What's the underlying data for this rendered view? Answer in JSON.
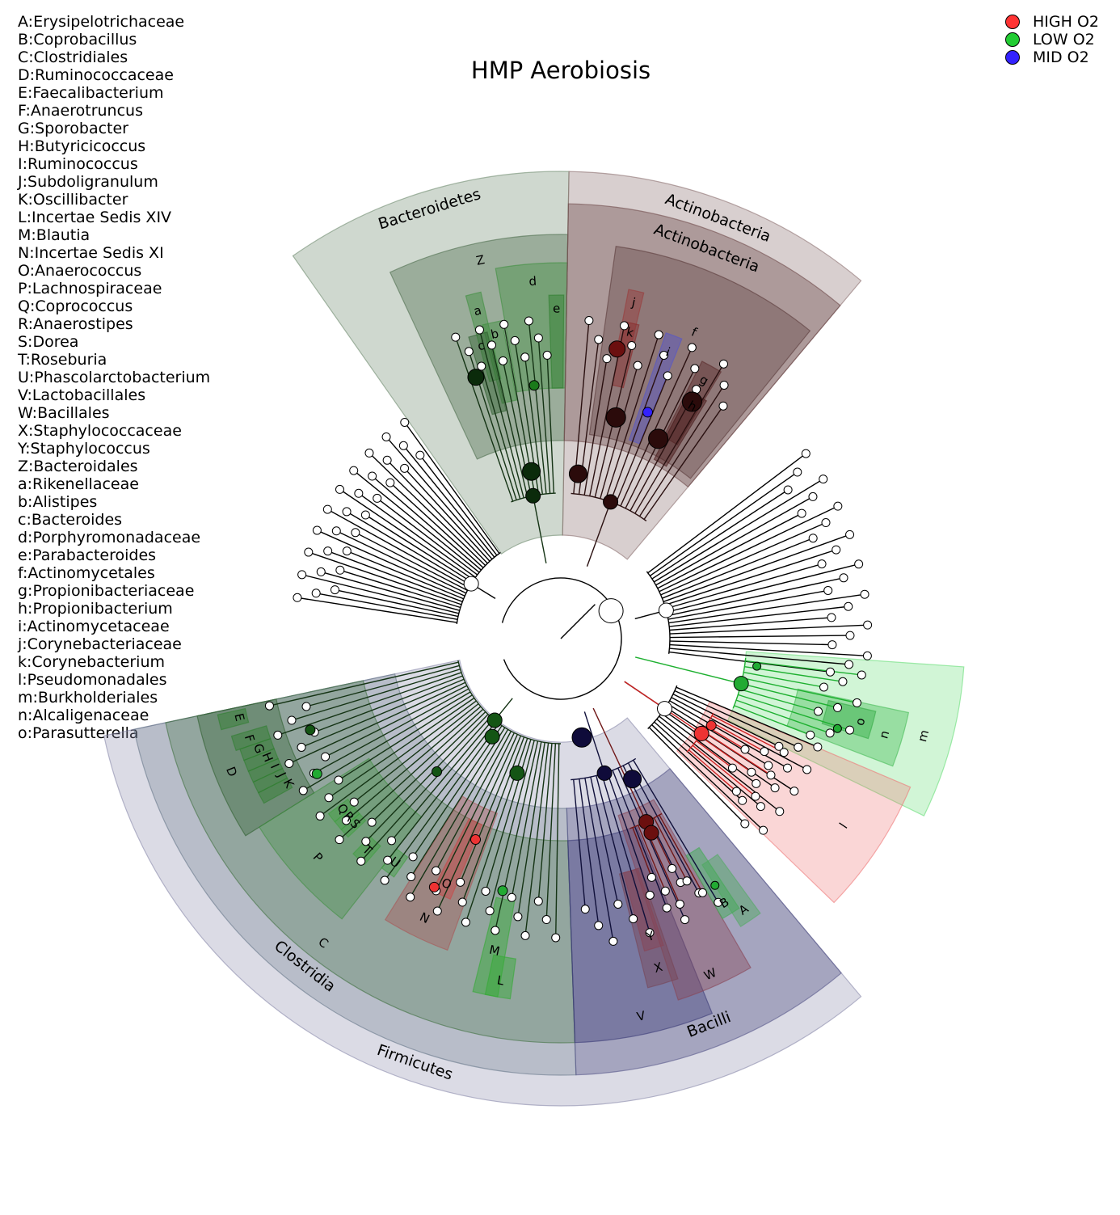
{
  "title": "HMP Aerobiosis",
  "legend": [
    {
      "label": "HIGH O2",
      "color": "#ff3333"
    },
    {
      "label": "LOW O2",
      "color": "#22cc33"
    },
    {
      "label": "MID O2",
      "color": "#3322ff"
    }
  ],
  "key": [
    "A:Erysipelotrichaceae",
    "B:Coprobacillus",
    "C:Clostridiales",
    "D:Ruminococcaceae",
    "E:Faecalibacterium",
    "F:Anaerotruncus",
    "G:Sporobacter",
    "H:Butyricicoccus",
    "I:Ruminococcus",
    "J:Subdoligranulum",
    "K:Oscillibacter",
    "L:Incertae Sedis XIV",
    "M:Blautia",
    "N:Incertae Sedis XI",
    "O:Anaerococcus",
    "P:Lachnospiraceae",
    "Q:Coprococcus",
    "R:Anaerostipes",
    "S:Dorea",
    "T:Roseburia",
    "U:Phascolarctobacterium",
    "V:Lactobacillales",
    "W:Bacillales",
    "X:Staphylococcaceae",
    "Y:Staphylococcus",
    "Z:Bacteroidales",
    "a:Rikenellaceae",
    "b:Alistipes",
    "c:Bacteroides",
    "d:Porphyromonadaceae",
    "e:Parabacteroides",
    "f:Actinomycetales",
    "g:Propionibacteriaceae",
    "h:Propionibacterium",
    "i:Actinomycetaceae",
    "j:Corynebacteriaceae",
    "k:Corynebacterium",
    "l:Pseudomonadales",
    "m:Burkholderiales",
    "n:Alcaligenaceae",
    "o:Parasutterella"
  ],
  "wedges": [
    {
      "label": "Bacteroidetes",
      "color": "#6e8a6e",
      "group": "LOW O2"
    },
    {
      "label": "Z",
      "color": "#4e6e4e",
      "group": "LOW O2"
    },
    {
      "label": "a",
      "color": "#3f8f3f",
      "group": "LOW O2"
    },
    {
      "label": "b",
      "color": "#3f8f3f",
      "group": "LOW O2"
    },
    {
      "label": "c",
      "color": "#2f5f2f",
      "group": "LOW O2"
    },
    {
      "label": "d",
      "color": "#3f8f3f",
      "group": "LOW O2"
    },
    {
      "label": "e",
      "color": "#2f7f2f",
      "group": "LOW O2"
    },
    {
      "label": "Actinobacteria",
      "color": "#8a6e6e",
      "group": "HIGH O2"
    },
    {
      "label": "Actinobacteria",
      "color": "#6e4a4a",
      "group": "HIGH O2"
    },
    {
      "label": "f",
      "color": "#5a3a3a",
      "group": "HIGH O2"
    },
    {
      "label": "j",
      "color": "#9a3a3a",
      "group": "HIGH O2"
    },
    {
      "label": "k",
      "color": "#8a2a2a",
      "group": "HIGH O2"
    },
    {
      "label": "i",
      "color": "#5555cc",
      "group": "MID O2"
    },
    {
      "label": "g",
      "color": "#5a2a2a",
      "group": "HIGH O2"
    },
    {
      "label": "h",
      "color": "#4a1a1a",
      "group": "HIGH O2"
    },
    {
      "label": "m",
      "color": "#66dd77",
      "group": "LOW O2"
    },
    {
      "label": "n",
      "color": "#44bb55",
      "group": "LOW O2"
    },
    {
      "label": "o",
      "color": "#33aa44",
      "group": "LOW O2"
    },
    {
      "label": "l",
      "color": "#ee7777",
      "group": "HIGH O2"
    },
    {
      "label": "Firmicutes",
      "color": "#8888aa",
      "group": "MID O2"
    },
    {
      "label": "Clostridia",
      "color": "#667788",
      "group": "LOW O2"
    },
    {
      "label": "C",
      "color": "#3f6f3f",
      "group": "LOW O2"
    },
    {
      "label": "D",
      "color": "#2f5f2f",
      "group": "LOW O2"
    },
    {
      "label": "E",
      "color": "#2f7f2f",
      "group": "LOW O2"
    },
    {
      "label": "F",
      "color": "#2f7f2f",
      "group": "LOW O2"
    },
    {
      "label": "G",
      "color": "#2f7f2f",
      "group": "LOW O2"
    },
    {
      "label": "H",
      "color": "#2f7f2f",
      "group": "LOW O2"
    },
    {
      "label": "I",
      "color": "#2f7f2f",
      "group": "LOW O2"
    },
    {
      "label": "J",
      "color": "#2f7f2f",
      "group": "LOW O2"
    },
    {
      "label": "K",
      "color": "#2f7f2f",
      "group": "LOW O2"
    },
    {
      "label": "P",
      "color": "#3f8f3f",
      "group": "LOW O2"
    },
    {
      "label": "Q",
      "color": "#3f9f3f",
      "group": "LOW O2"
    },
    {
      "label": "R",
      "color": "#3f9f3f",
      "group": "LOW O2"
    },
    {
      "label": "S",
      "color": "#3f9f3f",
      "group": "LOW O2"
    },
    {
      "label": "T",
      "color": "#3f9f3f",
      "group": "LOW O2"
    },
    {
      "label": "U",
      "color": "#3f9f3f",
      "group": "LOW O2"
    },
    {
      "label": "N",
      "color": "#aa5555",
      "group": "HIGH O2"
    },
    {
      "label": "O",
      "color": "#cc4444",
      "group": "HIGH O2"
    },
    {
      "label": "M",
      "color": "#33aa33",
      "group": "LOW O2"
    },
    {
      "label": "L",
      "color": "#33aa33",
      "group": "LOW O2"
    },
    {
      "label": "Bacilli",
      "color": "#555588",
      "group": "MID O2"
    },
    {
      "label": "V",
      "color": "#3a3a77",
      "group": "MID O2"
    },
    {
      "label": "W",
      "color": "#884455",
      "group": "HIGH O2"
    },
    {
      "label": "X",
      "color": "#774455",
      "group": "HIGH O2"
    },
    {
      "label": "Y",
      "color": "#884455",
      "group": "HIGH O2"
    },
    {
      "label": "A",
      "color": "#55aa66",
      "group": "LOW O2"
    },
    {
      "label": "B",
      "color": "#44aa55",
      "group": "LOW O2"
    }
  ]
}
